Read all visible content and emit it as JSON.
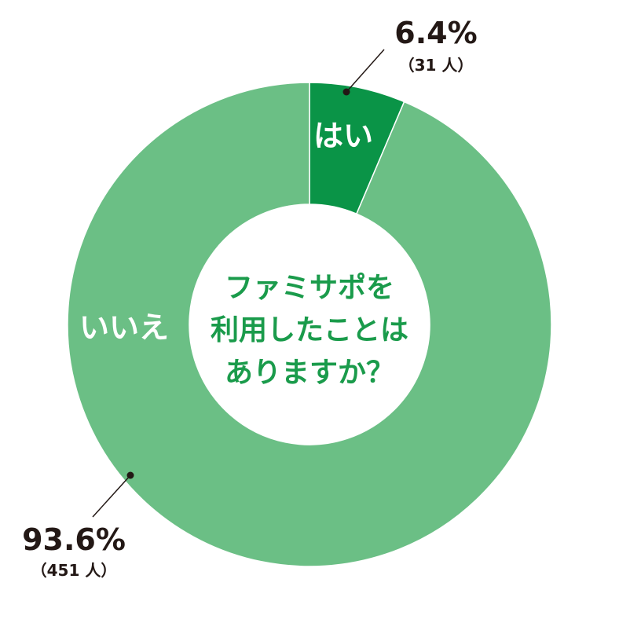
{
  "chart_data": {
    "type": "pie",
    "style": "donut",
    "center_title_lines": [
      "ファミサポを",
      "利用したことは",
      "ありますか？"
    ],
    "categories": [
      "はい",
      "いいえ"
    ],
    "values": [
      6.4,
      93.6
    ],
    "value_labels": [
      "6.4%",
      "93.6%"
    ],
    "counts": [
      "（31 人）",
      "（451 人）"
    ],
    "colors": [
      "#0a9447",
      "#6bbf85"
    ],
    "legend": "none"
  }
}
